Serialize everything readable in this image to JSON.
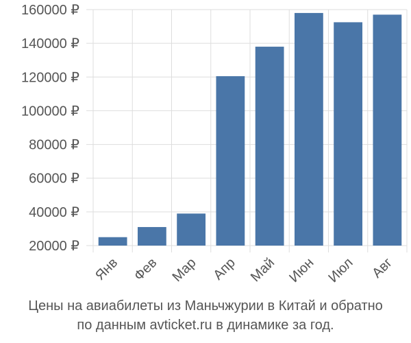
{
  "chart_data": {
    "type": "bar",
    "categories": [
      "Янв",
      "Фев",
      "Мар",
      "Апр",
      "Май",
      "Июн",
      "Июл",
      "Авг"
    ],
    "values": [
      25000,
      31000,
      39000,
      120500,
      138000,
      158000,
      152500,
      157000
    ],
    "ylim": [
      20000,
      160000
    ],
    "yticks": [
      20000,
      40000,
      60000,
      80000,
      100000,
      120000,
      140000,
      160000
    ],
    "ytick_labels": [
      "20000 ₽",
      "40000 ₽",
      "60000 ₽",
      "80000 ₽",
      "100000 ₽",
      "120000 ₽",
      "140000 ₽",
      "160000 ₽"
    ],
    "grid": true,
    "bar_color": "#4a76a8"
  },
  "caption": {
    "line1": "Цены на авиабилеты из Маньчжурии в Китай и обратно",
    "line2": "по данным avticket.ru в динамике за год."
  }
}
